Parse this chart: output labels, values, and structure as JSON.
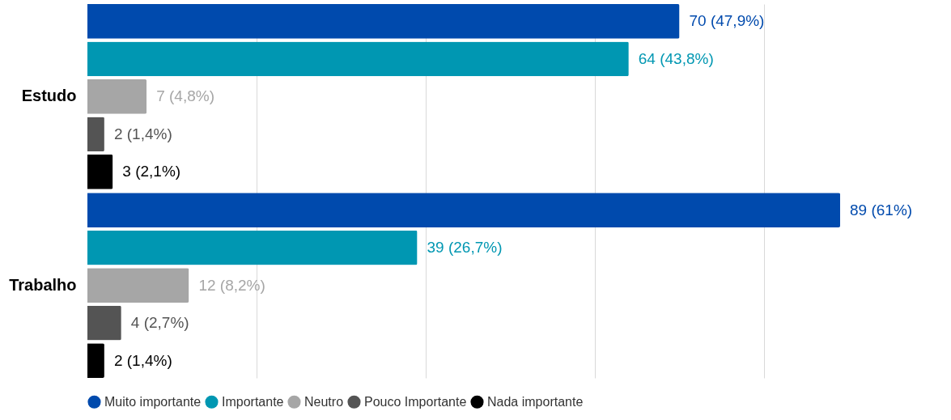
{
  "chart_data": {
    "type": "bar",
    "orientation": "horizontal",
    "categories": [
      "Estudo",
      "Trabalho"
    ],
    "series": [
      {
        "name": "Muito importante",
        "color": "#004aad",
        "values": [
          70,
          89
        ],
        "value_labels": [
          "70 (47,9%)",
          "89 (61%)"
        ]
      },
      {
        "name": "Importante",
        "color": "#0097b2",
        "values": [
          64,
          39
        ],
        "value_labels": [
          "64 (43,8%)",
          "39 (26,7%)"
        ]
      },
      {
        "name": "Neutro",
        "color": "#a6a6a6",
        "values": [
          7,
          12
        ],
        "value_labels": [
          "7 (4,8%)",
          "12 (8,2%)"
        ]
      },
      {
        "name": "Pouco Importante",
        "color": "#545454",
        "values": [
          2,
          4
        ],
        "value_labels": [
          "2 (1,4%)",
          "4 (2,7%)"
        ]
      },
      {
        "name": "Nada importante",
        "color": "#000000",
        "values": [
          3,
          2
        ],
        "value_labels": [
          "3 (2,1%)",
          "2 (1,4%)"
        ]
      }
    ],
    "xlim": [
      0,
      100
    ],
    "xticks": [
      {
        "value": 20,
        "label": null
      },
      {
        "value": 40,
        "label": null
      },
      {
        "value": 60,
        "label": null
      },
      {
        "value": 80,
        "label": null
      }
    ],
    "tick_labels": "y",
    "grid": "x",
    "legend": "bottom"
  }
}
